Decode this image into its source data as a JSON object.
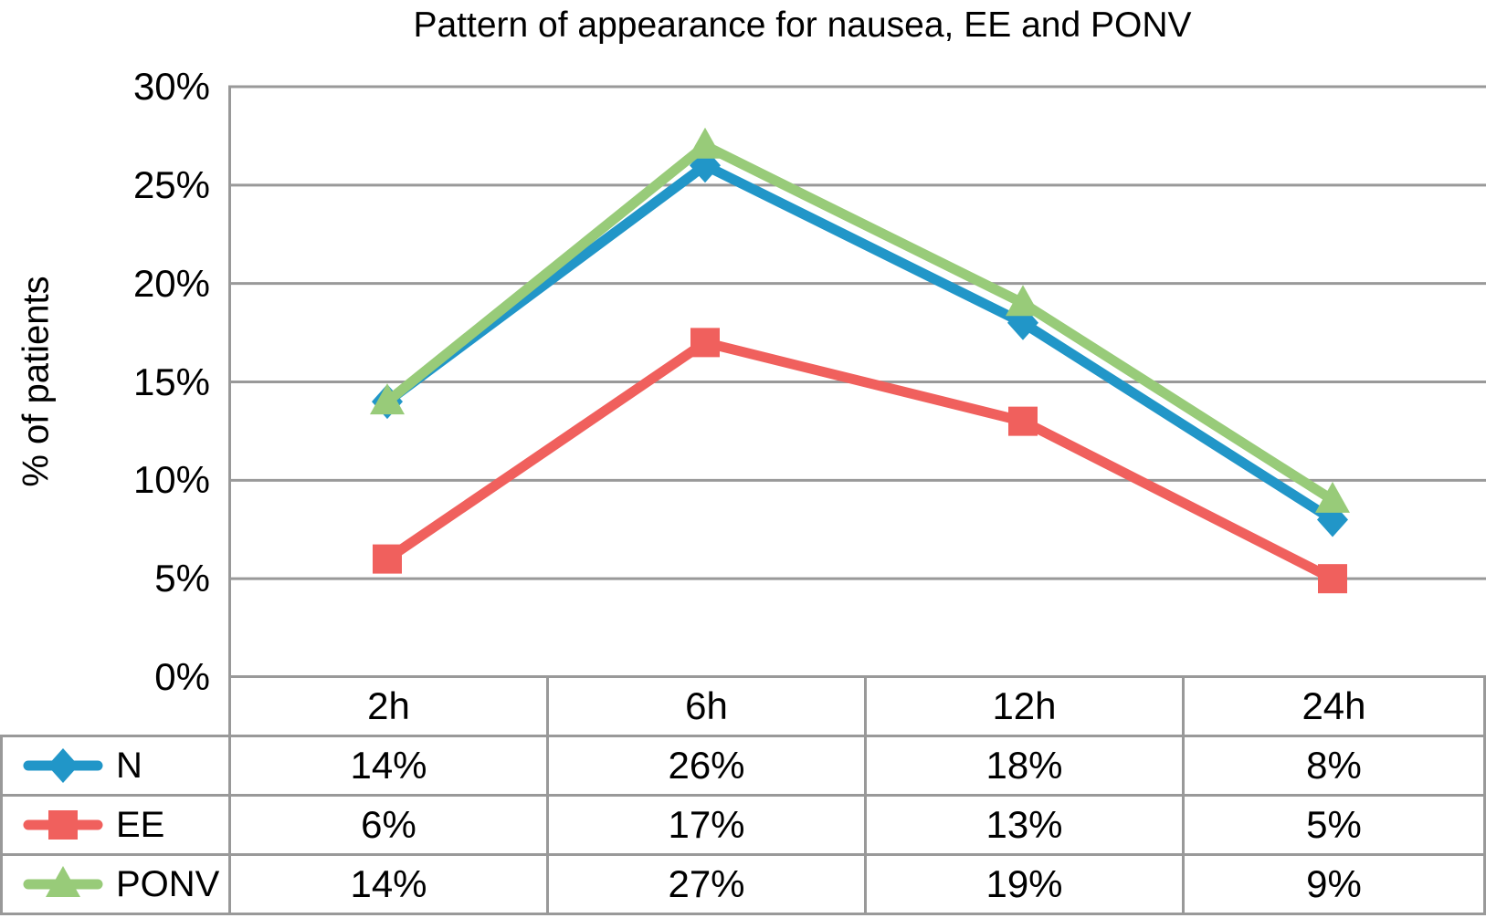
{
  "chart_data": {
    "type": "line",
    "title": "Pattern of appearance for nausea, EE and PONV",
    "ylabel": "% of patients",
    "xlabel": "",
    "categories": [
      "2h",
      "6h",
      "12h",
      "24h"
    ],
    "series": [
      {
        "name": "N",
        "values": [
          14,
          26,
          18,
          8
        ],
        "color": "#2196C8",
        "marker": "diamond"
      },
      {
        "name": "EE",
        "values": [
          6,
          17,
          13,
          5
        ],
        "color": "#F0605D",
        "marker": "square"
      },
      {
        "name": "PONV",
        "values": [
          14,
          27,
          19,
          9
        ],
        "color": "#98CB79",
        "marker": "triangle"
      }
    ],
    "ylim": [
      0,
      30
    ],
    "ytick_step": 5,
    "ytick_labels": [
      "0%",
      "5%",
      "10%",
      "15%",
      "20%",
      "25%",
      "30%"
    ],
    "grid": true,
    "gridline_color": "#999999",
    "legend_position": "table-left",
    "value_format": "percent"
  },
  "table": {
    "column_headers": [
      "2h",
      "6h",
      "12h",
      "24h"
    ],
    "rows": [
      {
        "label": "N",
        "values": [
          "14%",
          "26%",
          "18%",
          "8%"
        ]
      },
      {
        "label": "EE",
        "values": [
          "6%",
          "17%",
          "13%",
          "5%"
        ]
      },
      {
        "label": "PONV",
        "values": [
          "14%",
          "27%",
          "19%",
          "9%"
        ]
      }
    ]
  },
  "colors": {
    "background": "#FFFFFF",
    "text": "#000000",
    "grid": "#999999",
    "series_n": "#2196C8",
    "series_ee": "#F0605D",
    "series_ponv": "#98CB79"
  }
}
